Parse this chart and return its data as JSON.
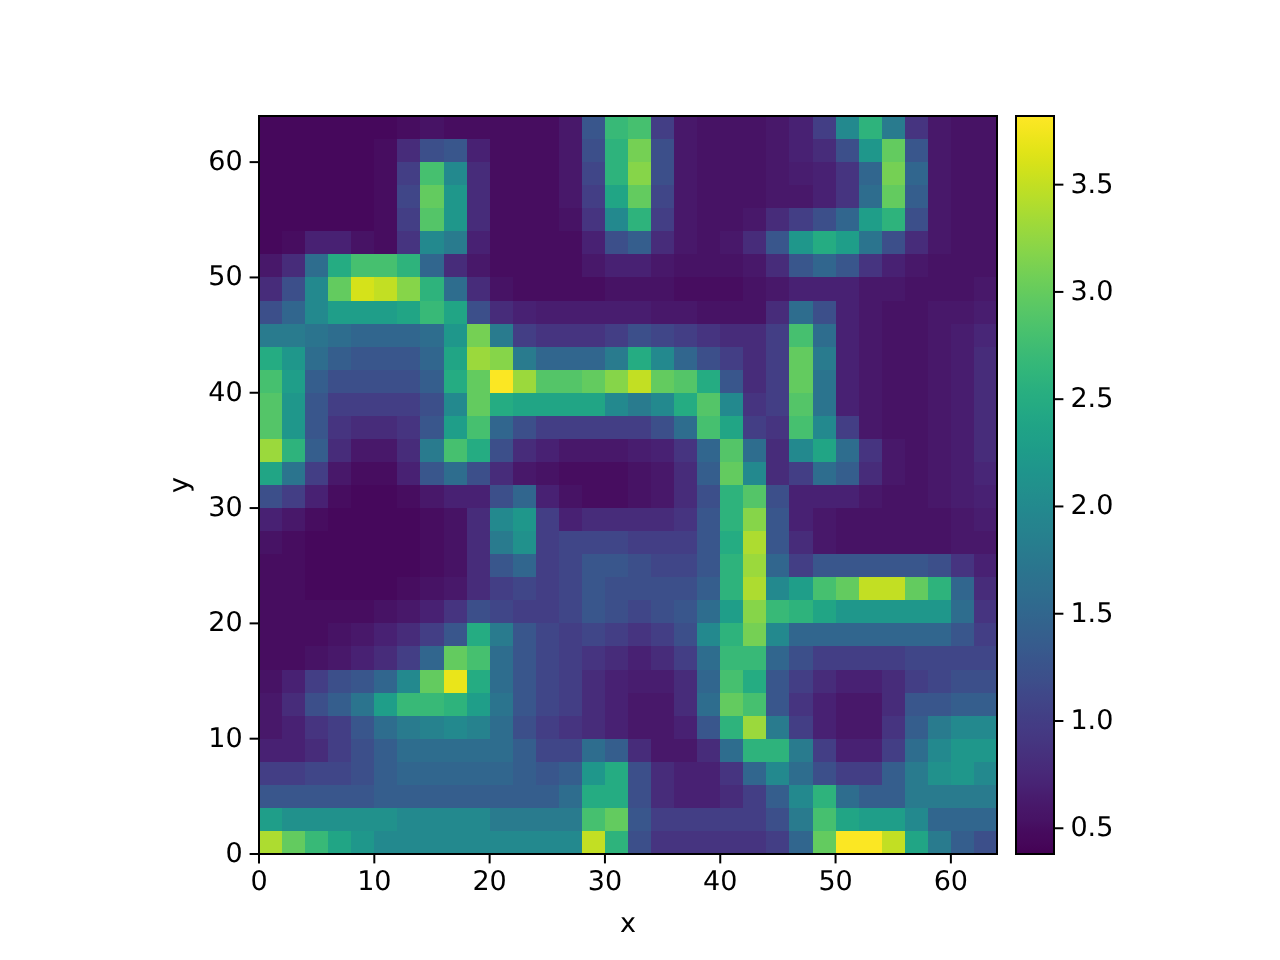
{
  "chart_data": {
    "type": "heatmap",
    "xlabel": "x",
    "ylabel": "y",
    "xlim": [
      0,
      64
    ],
    "ylim": [
      0,
      64
    ],
    "xticks": [
      0,
      10,
      20,
      30,
      40,
      50,
      60
    ],
    "yticks": [
      0,
      10,
      20,
      30,
      40,
      50,
      60
    ],
    "clim": [
      0.38,
      3.82
    ],
    "cticks": [
      0.5,
      {
        "value": 1,
        "label": "1.0"
      },
      1.5,
      {
        "value": 2,
        "label": "2.0"
      },
      2.5,
      {
        "value": 3,
        "label": "3.0"
      },
      3.5
    ],
    "cells": [
      [
        0.45,
        0.45,
        0.45,
        0.45,
        0.45,
        0.45,
        0.5,
        0.55,
        0.5,
        0.5,
        0.5,
        0.5,
        0.5,
        0.6,
        1.3,
        2.7,
        2.8,
        1.0,
        0.6,
        0.55,
        0.55,
        0.55,
        0.6,
        0.7,
        1.0,
        2.0,
        2.6,
        1.8,
        0.9,
        0.6,
        0.55,
        0.55
      ],
      [
        0.45,
        0.45,
        0.45,
        0.45,
        0.45,
        0.5,
        0.8,
        1.2,
        1.3,
        0.7,
        0.5,
        0.5,
        0.5,
        0.6,
        1.2,
        2.6,
        3.1,
        1.2,
        0.6,
        0.55,
        0.55,
        0.55,
        0.6,
        0.7,
        0.8,
        1.2,
        2.2,
        3.0,
        1.3,
        0.6,
        0.55,
        0.55
      ],
      [
        0.45,
        0.45,
        0.45,
        0.45,
        0.45,
        0.5,
        1.0,
        2.8,
        2.0,
        0.8,
        0.5,
        0.5,
        0.5,
        0.6,
        1.1,
        2.6,
        3.2,
        1.2,
        0.6,
        0.55,
        0.55,
        0.55,
        0.6,
        0.65,
        0.7,
        0.9,
        1.5,
        3.1,
        1.5,
        0.6,
        0.55,
        0.55
      ],
      [
        0.45,
        0.45,
        0.45,
        0.45,
        0.45,
        0.5,
        1.1,
        3.0,
        2.2,
        0.8,
        0.5,
        0.5,
        0.5,
        0.6,
        1.0,
        2.4,
        3.0,
        1.1,
        0.6,
        0.55,
        0.55,
        0.55,
        0.6,
        0.6,
        0.7,
        0.9,
        1.6,
        3.0,
        1.4,
        0.6,
        0.55,
        0.55
      ],
      [
        0.45,
        0.45,
        0.45,
        0.45,
        0.45,
        0.5,
        1.0,
        2.9,
        2.2,
        0.8,
        0.5,
        0.5,
        0.5,
        0.55,
        0.9,
        2.0,
        2.6,
        1.0,
        0.6,
        0.55,
        0.55,
        0.6,
        0.8,
        1.0,
        1.2,
        1.5,
        2.3,
        2.6,
        1.2,
        0.6,
        0.55,
        0.55
      ],
      [
        0.45,
        0.5,
        0.7,
        0.7,
        0.55,
        0.5,
        0.9,
        2.0,
        1.8,
        0.7,
        0.5,
        0.5,
        0.5,
        0.5,
        0.7,
        1.2,
        1.4,
        0.8,
        0.6,
        0.55,
        0.6,
        0.8,
        1.3,
        2.2,
        2.5,
        2.3,
        1.7,
        1.2,
        0.8,
        0.6,
        0.55,
        0.55
      ],
      [
        0.6,
        0.8,
        1.6,
        2.5,
        2.8,
        2.8,
        2.6,
        1.5,
        0.8,
        0.6,
        0.5,
        0.5,
        0.5,
        0.5,
        0.6,
        0.7,
        0.7,
        0.6,
        0.55,
        0.55,
        0.55,
        0.6,
        0.8,
        1.3,
        1.5,
        1.3,
        0.9,
        0.7,
        0.6,
        0.55,
        0.55,
        0.55
      ],
      [
        0.8,
        1.2,
        2.0,
        3.0,
        3.6,
        3.5,
        3.2,
        2.6,
        1.6,
        0.8,
        0.55,
        0.5,
        0.5,
        0.5,
        0.5,
        0.55,
        0.55,
        0.55,
        0.5,
        0.5,
        0.5,
        0.55,
        0.6,
        0.7,
        0.7,
        0.7,
        0.6,
        0.6,
        0.55,
        0.55,
        0.55,
        0.6
      ],
      [
        1.2,
        1.5,
        2.0,
        2.3,
        2.3,
        2.3,
        2.4,
        2.7,
        2.4,
        1.2,
        0.8,
        0.7,
        0.65,
        0.65,
        0.65,
        0.65,
        0.65,
        0.6,
        0.6,
        0.55,
        0.55,
        0.55,
        0.8,
        1.6,
        1.2,
        0.7,
        0.6,
        0.55,
        0.55,
        0.6,
        0.6,
        0.65
      ],
      [
        1.8,
        1.8,
        1.7,
        1.6,
        1.5,
        1.5,
        1.5,
        1.6,
        2.2,
        3.1,
        1.8,
        1.0,
        0.9,
        0.9,
        0.9,
        1.0,
        1.2,
        1.1,
        1.0,
        0.9,
        0.8,
        0.8,
        1.0,
        2.8,
        1.6,
        0.7,
        0.6,
        0.55,
        0.55,
        0.6,
        0.65,
        0.75
      ],
      [
        2.5,
        2.2,
        1.6,
        1.4,
        1.3,
        1.3,
        1.3,
        1.5,
        2.4,
        3.3,
        3.2,
        1.8,
        1.5,
        1.5,
        1.5,
        1.8,
        2.5,
        2.0,
        1.5,
        1.2,
        1.0,
        0.8,
        1.0,
        3.0,
        1.8,
        0.7,
        0.6,
        0.55,
        0.55,
        0.6,
        0.65,
        0.8
      ],
      [
        2.8,
        2.3,
        1.4,
        1.2,
        1.2,
        1.2,
        1.2,
        1.4,
        2.5,
        3.0,
        3.8,
        3.3,
        2.9,
        2.9,
        3.0,
        3.2,
        3.5,
        3.0,
        2.9,
        2.5,
        1.3,
        0.8,
        1.0,
        3.0,
        1.7,
        0.7,
        0.6,
        0.55,
        0.55,
        0.6,
        0.65,
        0.8
      ],
      [
        2.9,
        2.2,
        1.3,
        1.0,
        1.0,
        1.0,
        1.0,
        1.2,
        2.0,
        3.0,
        2.5,
        2.4,
        2.4,
        2.4,
        2.4,
        2.0,
        1.8,
        2.0,
        2.5,
        2.9,
        2.0,
        0.9,
        1.0,
        2.9,
        1.7,
        0.7,
        0.6,
        0.55,
        0.55,
        0.6,
        0.65,
        0.8
      ],
      [
        2.9,
        2.2,
        1.3,
        0.9,
        0.8,
        0.8,
        0.9,
        1.3,
        2.3,
        2.8,
        1.5,
        1.2,
        1.0,
        1.0,
        1.0,
        1.0,
        1.0,
        1.2,
        1.6,
        2.8,
        2.4,
        1.0,
        0.9,
        2.8,
        2.0,
        1.0,
        0.6,
        0.55,
        0.55,
        0.6,
        0.65,
        0.8
      ],
      [
        3.3,
        2.6,
        1.4,
        0.8,
        0.6,
        0.6,
        0.8,
        1.8,
        2.8,
        2.5,
        1.2,
        0.8,
        0.7,
        0.6,
        0.6,
        0.6,
        0.65,
        0.7,
        0.9,
        1.5,
        2.9,
        1.6,
        0.8,
        2.0,
        2.4,
        1.6,
        0.9,
        0.6,
        0.55,
        0.6,
        0.65,
        0.8
      ],
      [
        2.4,
        1.7,
        1.0,
        0.6,
        0.5,
        0.5,
        0.7,
        1.3,
        1.6,
        1.2,
        0.8,
        0.6,
        0.55,
        0.5,
        0.5,
        0.5,
        0.55,
        0.6,
        0.8,
        1.4,
        3.0,
        2.0,
        0.8,
        1.0,
        1.6,
        1.4,
        0.8,
        0.6,
        0.55,
        0.6,
        0.65,
        0.75
      ],
      [
        1.2,
        1.0,
        0.7,
        0.5,
        0.45,
        0.45,
        0.5,
        0.6,
        0.7,
        0.7,
        1.2,
        1.5,
        0.7,
        0.55,
        0.5,
        0.5,
        0.55,
        0.6,
        0.8,
        1.2,
        2.6,
        2.9,
        1.2,
        0.7,
        0.7,
        0.7,
        0.6,
        0.55,
        0.55,
        0.6,
        0.65,
        0.7
      ],
      [
        0.7,
        0.6,
        0.5,
        0.45,
        0.45,
        0.45,
        0.45,
        0.5,
        0.55,
        0.8,
        2.0,
        2.2,
        1.0,
        0.7,
        0.8,
        0.8,
        0.8,
        0.8,
        0.9,
        1.3,
        2.6,
        3.2,
        1.3,
        0.7,
        0.6,
        0.55,
        0.55,
        0.55,
        0.55,
        0.55,
        0.6,
        0.65
      ],
      [
        0.55,
        0.5,
        0.45,
        0.45,
        0.45,
        0.45,
        0.45,
        0.5,
        0.55,
        0.8,
        1.8,
        2.1,
        1.0,
        1.1,
        1.1,
        1.1,
        1.0,
        1.0,
        1.0,
        1.3,
        2.5,
        3.4,
        1.3,
        0.8,
        0.6,
        0.55,
        0.55,
        0.55,
        0.55,
        0.55,
        0.6,
        0.6
      ],
      [
        0.5,
        0.5,
        0.45,
        0.45,
        0.45,
        0.45,
        0.45,
        0.5,
        0.55,
        0.8,
        1.3,
        1.5,
        1.0,
        1.1,
        1.3,
        1.3,
        1.2,
        1.1,
        1.1,
        1.3,
        2.6,
        3.3,
        1.5,
        1.0,
        1.3,
        1.3,
        1.3,
        1.3,
        1.3,
        1.2,
        0.9,
        0.7
      ],
      [
        0.5,
        0.5,
        0.45,
        0.45,
        0.45,
        0.45,
        0.5,
        0.55,
        0.6,
        0.8,
        1.0,
        1.1,
        1.0,
        1.1,
        1.3,
        1.2,
        1.2,
        1.2,
        1.2,
        1.4,
        2.6,
        3.4,
        2.0,
        2.3,
        2.8,
        3.0,
        3.5,
        3.5,
        3.0,
        2.6,
        1.5,
        0.8
      ],
      [
        0.5,
        0.5,
        0.5,
        0.5,
        0.5,
        0.55,
        0.6,
        0.7,
        0.9,
        1.2,
        1.1,
        1.0,
        1.0,
        1.1,
        1.3,
        1.2,
        1.1,
        1.2,
        1.3,
        1.6,
        2.3,
        3.2,
        2.7,
        2.6,
        2.4,
        2.2,
        2.2,
        2.2,
        2.2,
        2.2,
        1.6,
        0.9
      ],
      [
        0.5,
        0.5,
        0.5,
        0.55,
        0.6,
        0.7,
        0.8,
        1.0,
        1.3,
        2.5,
        1.8,
        1.3,
        1.1,
        1.0,
        1.1,
        1.0,
        0.9,
        1.0,
        1.2,
        2.0,
        2.6,
        3.1,
        2.0,
        1.5,
        1.5,
        1.5,
        1.5,
        1.5,
        1.5,
        1.5,
        1.3,
        1.0
      ],
      [
        0.5,
        0.5,
        0.55,
        0.6,
        0.7,
        0.8,
        1.0,
        1.5,
        3.0,
        2.8,
        1.6,
        1.3,
        1.1,
        1.0,
        0.9,
        0.8,
        0.7,
        0.8,
        1.0,
        1.6,
        2.7,
        2.7,
        1.5,
        1.2,
        1.0,
        1.0,
        1.0,
        1.0,
        1.1,
        1.1,
        1.1,
        1.1
      ],
      [
        0.55,
        0.7,
        1.0,
        1.2,
        1.3,
        1.5,
        2.0,
        3.0,
        3.7,
        2.5,
        1.6,
        1.3,
        1.1,
        1.0,
        0.8,
        0.7,
        0.65,
        0.65,
        0.8,
        1.5,
        2.8,
        2.5,
        1.3,
        1.0,
        0.8,
        0.7,
        0.7,
        0.8,
        1.0,
        1.1,
        1.2,
        1.2
      ],
      [
        0.6,
        0.8,
        1.2,
        1.4,
        1.7,
        2.3,
        2.7,
        2.7,
        2.6,
        2.3,
        1.7,
        1.3,
        1.1,
        1.0,
        0.8,
        0.7,
        0.6,
        0.6,
        0.8,
        1.6,
        3.0,
        2.8,
        1.3,
        0.9,
        0.7,
        0.6,
        0.6,
        0.8,
        1.3,
        1.3,
        1.4,
        1.4
      ],
      [
        0.6,
        0.7,
        0.9,
        1.0,
        1.3,
        1.6,
        1.8,
        1.9,
        2.0,
        1.9,
        1.6,
        1.2,
        1.0,
        0.9,
        0.8,
        0.7,
        0.6,
        0.6,
        0.7,
        1.3,
        2.6,
        3.3,
        1.8,
        1.0,
        0.7,
        0.6,
        0.6,
        0.9,
        1.4,
        1.8,
        2.0,
        2.0
      ],
      [
        0.7,
        0.7,
        0.8,
        1.0,
        1.2,
        1.4,
        1.6,
        1.6,
        1.6,
        1.6,
        1.6,
        1.4,
        1.1,
        1.1,
        1.6,
        1.4,
        0.8,
        0.6,
        0.6,
        0.8,
        1.6,
        2.6,
        2.6,
        1.8,
        1.0,
        0.7,
        0.7,
        1.0,
        1.6,
        2.0,
        2.2,
        2.2
      ],
      [
        1.0,
        1.0,
        1.1,
        1.1,
        1.2,
        1.4,
        1.5,
        1.5,
        1.5,
        1.5,
        1.5,
        1.4,
        1.3,
        1.4,
        2.2,
        2.5,
        1.2,
        0.8,
        0.7,
        0.7,
        0.9,
        1.5,
        2.0,
        1.6,
        1.2,
        1.0,
        1.0,
        1.4,
        1.8,
        2.1,
        2.2,
        2.0
      ],
      [
        1.3,
        1.3,
        1.3,
        1.3,
        1.3,
        1.4,
        1.4,
        1.4,
        1.4,
        1.4,
        1.4,
        1.4,
        1.4,
        1.6,
        2.5,
        2.5,
        1.2,
        0.8,
        0.7,
        0.7,
        0.8,
        1.0,
        1.4,
        2.0,
        2.6,
        1.6,
        1.4,
        1.4,
        1.8,
        1.8,
        1.8,
        1.8
      ],
      [
        2.3,
        2.1,
        2.1,
        2.1,
        2.1,
        2.1,
        2.0,
        2.0,
        2.0,
        2.0,
        1.8,
        1.8,
        1.8,
        1.8,
        2.8,
        3.0,
        1.3,
        1.0,
        1.0,
        1.0,
        1.0,
        1.0,
        1.2,
        1.8,
        2.8,
        2.4,
        2.3,
        2.3,
        2.0,
        1.5,
        1.5,
        1.5
      ],
      [
        3.4,
        3.0,
        2.7,
        2.4,
        2.2,
        2.0,
        2.0,
        2.0,
        2.0,
        2.0,
        2.0,
        2.0,
        2.0,
        2.0,
        3.5,
        2.6,
        1.2,
        0.9,
        0.9,
        0.9,
        0.9,
        0.9,
        1.0,
        1.5,
        3.0,
        3.8,
        3.8,
        3.5,
        2.4,
        1.8,
        1.4,
        1.2
      ]
    ]
  }
}
